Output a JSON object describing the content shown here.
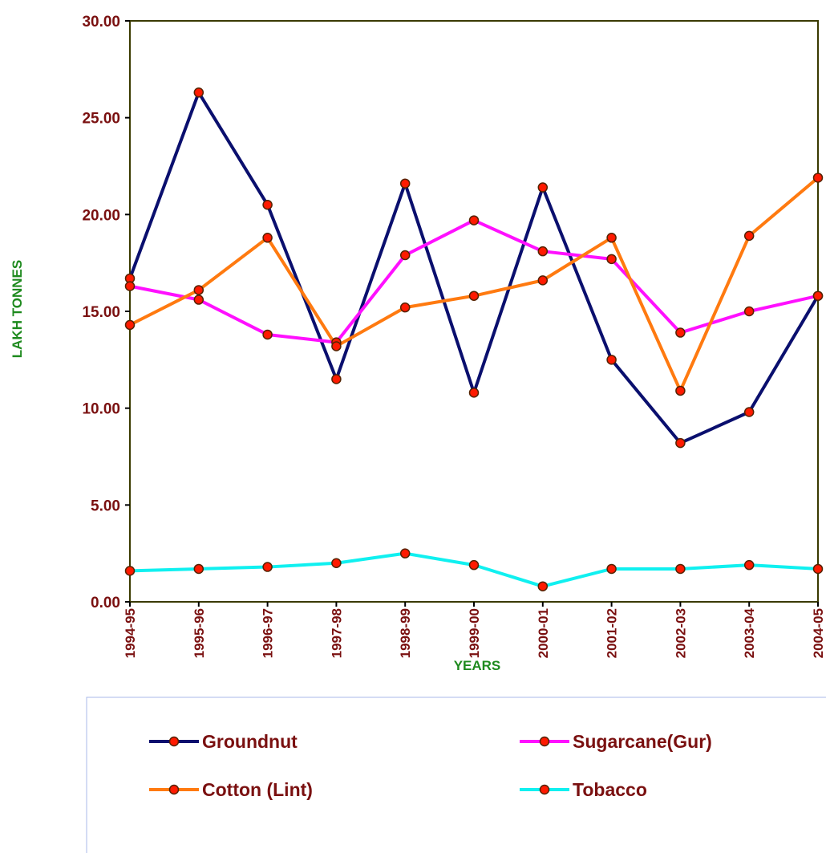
{
  "chart_data": {
    "type": "line",
    "title": "",
    "xlabel": "YEARS",
    "ylabel": "LAKH  TONNES",
    "ylim": [
      0,
      30
    ],
    "ytick_labels": [
      "0.00",
      "5.00",
      "10.00",
      "15.00",
      "20.00",
      "25.00",
      "30.00"
    ],
    "categories": [
      "1994-95",
      "1995-96",
      "1996-97",
      "1997-98",
      "1998-99",
      "1999-00",
      "2000-01",
      "2001-02",
      "2002-03",
      "2003-04",
      "2004-05"
    ],
    "series": [
      {
        "name": "Groundnut",
        "color": "#0a0f6e",
        "values": [
          16.7,
          26.3,
          20.5,
          11.5,
          21.6,
          10.8,
          21.4,
          12.5,
          8.2,
          9.8,
          15.8
        ]
      },
      {
        "name": "Sugarcane(Gur)",
        "color": "#ff10ff",
        "values": [
          16.3,
          15.6,
          13.8,
          13.4,
          17.9,
          19.7,
          18.1,
          17.7,
          13.9,
          15.0,
          15.8
        ]
      },
      {
        "name": "Cotton (Lint)",
        "color": "#ff7a10",
        "values": [
          14.3,
          16.1,
          18.8,
          13.2,
          15.2,
          15.8,
          16.6,
          18.8,
          10.9,
          18.9,
          21.9
        ]
      },
      {
        "name": "Tobacco",
        "color": "#10f0f0",
        "values": [
          1.6,
          1.7,
          1.8,
          2.0,
          2.5,
          1.9,
          0.8,
          1.7,
          1.7,
          1.9,
          1.7
        ]
      }
    ],
    "marker": {
      "style": "circle",
      "fill": "#ff1a00",
      "stroke": "#552200"
    },
    "grid": false,
    "legend_position": "bottom",
    "plot_border_color": "#3a3a00",
    "legend_background": "#ffffff",
    "legend_border_color": "#a8b8e8"
  }
}
